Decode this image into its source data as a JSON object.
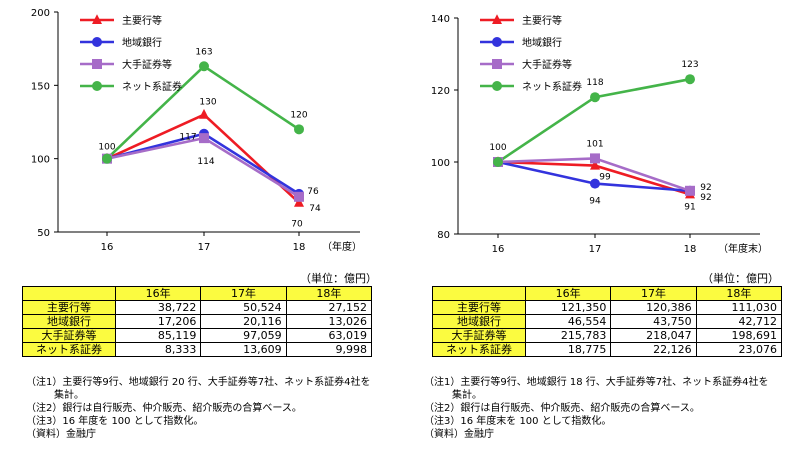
{
  "colors": {
    "series": [
      "#ee1c24",
      "#3333dd",
      "#a66cc8",
      "#44b449"
    ],
    "table_header": "#fbfb40"
  },
  "left": {
    "unit": "（単位：億円）",
    "table": {
      "columns": [
        "16年",
        "17年",
        "18年"
      ],
      "rows": [
        {
          "label": "主要行等",
          "values": [
            "38,722",
            "50,524",
            "27,152"
          ]
        },
        {
          "label": "地域銀行",
          "values": [
            "17,206",
            "20,116",
            "13,026"
          ]
        },
        {
          "label": "大手証券等",
          "values": [
            "85,119",
            "97,059",
            "63,019"
          ]
        },
        {
          "label": "ネット系証券",
          "values": [
            "8,333",
            "13,609",
            "9,998"
          ]
        }
      ]
    },
    "notes": [
      {
        "text": "（注1）主要行等9行、地域銀行 20 行、大手証券等7社、ネット系証券4社を",
        "indent": false
      },
      {
        "text": "集計。",
        "indent": true
      },
      {
        "text": "（注2）銀行は自行販売、仲介販売、紹介販売の合算ベース。",
        "indent": false
      },
      {
        "text": "（注3）16 年度を 100 として指数化。",
        "indent": false
      },
      {
        "text": "（資料）金融庁",
        "indent": false
      }
    ]
  },
  "right": {
    "unit": "（単位：億円）",
    "table": {
      "columns": [
        "16年",
        "17年",
        "18年"
      ],
      "rows": [
        {
          "label": "主要行等",
          "values": [
            "121,350",
            "120,386",
            "111,030"
          ]
        },
        {
          "label": "地域銀行",
          "values": [
            "46,554",
            "43,750",
            "42,712"
          ]
        },
        {
          "label": "大手証券等",
          "values": [
            "215,783",
            "218,047",
            "198,691"
          ]
        },
        {
          "label": "ネット系証券",
          "values": [
            "18,775",
            "22,126",
            "23,076"
          ]
        }
      ]
    },
    "notes": [
      {
        "text": "（注1）主要行等9行、地域銀行 18 行、大手証券等7社、ネット系証券4社を",
        "indent": false
      },
      {
        "text": "集計。",
        "indent": true
      },
      {
        "text": "（注2）銀行は自行販売、仲介販売、紹介販売の合算ベース。",
        "indent": false
      },
      {
        "text": "（注3）16 年度末を 100 として指数化。",
        "indent": false
      },
      {
        "text": "（資料）金融庁",
        "indent": false
      }
    ]
  },
  "chart_data": [
    {
      "type": "line",
      "title": "",
      "xlabel": "（年度）",
      "ylabel": "",
      "categories": [
        "16",
        "17",
        "18"
      ],
      "ylim": [
        50,
        200
      ],
      "yticks": [
        50,
        100,
        150,
        200
      ],
      "grid": false,
      "legend": "top-left",
      "series": [
        {
          "name": "主要行等",
          "marker": "triangle",
          "values": [
            100,
            130,
            70
          ],
          "labels": [
            "",
            "130",
            "70"
          ]
        },
        {
          "name": "地域銀行",
          "marker": "circle",
          "values": [
            100,
            117,
            76
          ],
          "labels": [
            "",
            "117",
            "76"
          ]
        },
        {
          "name": "大手証券等",
          "marker": "square",
          "values": [
            100,
            114,
            74
          ],
          "labels": [
            "",
            "114",
            "74"
          ]
        },
        {
          "name": "ネット系証券",
          "marker": "circle",
          "values": [
            100,
            163,
            120
          ],
          "labels": [
            "100",
            "163",
            "120"
          ]
        }
      ]
    },
    {
      "type": "line",
      "title": "",
      "xlabel": "（年度末）",
      "ylabel": "",
      "categories": [
        "16",
        "17",
        "18"
      ],
      "ylim": [
        80,
        140
      ],
      "yticks": [
        80,
        100,
        120,
        140
      ],
      "grid": false,
      "legend": "top-left",
      "series": [
        {
          "name": "主要行等",
          "marker": "triangle",
          "values": [
            100,
            99,
            91
          ],
          "labels": [
            "",
            "99",
            "91"
          ]
        },
        {
          "name": "地域銀行",
          "marker": "circle",
          "values": [
            100,
            94,
            92
          ],
          "labels": [
            "",
            "94",
            "92"
          ]
        },
        {
          "name": "大手証券等",
          "marker": "square",
          "values": [
            100,
            101,
            92
          ],
          "labels": [
            "",
            "101",
            "92"
          ]
        },
        {
          "name": "ネット系証券",
          "marker": "circle",
          "values": [
            100,
            118,
            123
          ],
          "labels": [
            "100",
            "118",
            "123"
          ]
        }
      ]
    }
  ]
}
